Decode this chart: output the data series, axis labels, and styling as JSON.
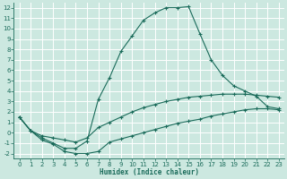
{
  "xlabel": "Humidex (Indice chaleur)",
  "background_color": "#cce8e0",
  "grid_color": "#b0d4cc",
  "line_color": "#1a6b5a",
  "xlim": [
    -0.5,
    23.5
  ],
  "ylim": [
    -2.5,
    12.5
  ],
  "xticks": [
    0,
    1,
    2,
    3,
    4,
    5,
    6,
    7,
    8,
    9,
    10,
    11,
    12,
    13,
    14,
    15,
    16,
    17,
    18,
    19,
    20,
    21,
    22,
    23
  ],
  "yticks": [
    -2,
    -1,
    0,
    1,
    2,
    3,
    4,
    5,
    6,
    7,
    8,
    9,
    10,
    11,
    12
  ],
  "curve_main_x": [
    0,
    1,
    2,
    3,
    4,
    5,
    6,
    7,
    8,
    9,
    10,
    11,
    12,
    13,
    14,
    15,
    16,
    17,
    18,
    19,
    20,
    21,
    22,
    23
  ],
  "curve_main_y": [
    1.5,
    0.2,
    -0.5,
    -1.0,
    -1.5,
    -1.5,
    -0.8,
    3.2,
    5.3,
    7.8,
    9.3,
    10.8,
    11.5,
    12.0,
    12.0,
    12.1,
    9.5,
    7.0,
    5.5,
    4.5,
    4.0,
    3.5,
    2.5,
    2.3
  ],
  "curve_upper_x": [
    0,
    1,
    2,
    3,
    4,
    5,
    6,
    7,
    8,
    9,
    10,
    11,
    12,
    13,
    14,
    15,
    16,
    17,
    18,
    19,
    20,
    21,
    22,
    23
  ],
  "curve_upper_y": [
    1.5,
    0.2,
    -0.3,
    -0.5,
    -0.7,
    -0.9,
    -0.5,
    0.5,
    1.0,
    1.5,
    2.0,
    2.4,
    2.7,
    3.0,
    3.2,
    3.4,
    3.5,
    3.6,
    3.7,
    3.7,
    3.7,
    3.6,
    3.5,
    3.4
  ],
  "curve_lower_x": [
    0,
    1,
    2,
    3,
    4,
    5,
    6,
    7,
    8,
    9,
    10,
    11,
    12,
    13,
    14,
    15,
    16,
    17,
    18,
    19,
    20,
    21,
    22,
    23
  ],
  "curve_lower_y": [
    1.5,
    0.2,
    -0.7,
    -1.1,
    -1.8,
    -2.0,
    -2.0,
    -1.8,
    -0.9,
    -0.6,
    -0.3,
    0.0,
    0.3,
    0.6,
    0.9,
    1.1,
    1.3,
    1.6,
    1.8,
    2.0,
    2.2,
    2.3,
    2.3,
    2.2
  ]
}
